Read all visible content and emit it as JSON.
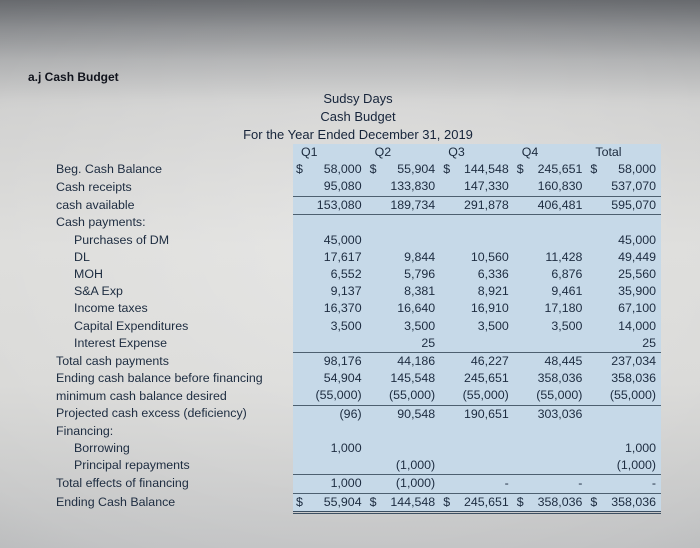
{
  "heading": "a.j Cash Budget",
  "title": {
    "company": "Sudsy Days",
    "report": "Cash Budget",
    "period": "For the Year Ended December 31, 2019"
  },
  "colors": {
    "table_background": "#c6d9e8",
    "rule_line": "#4d6070",
    "text": "#1d2c40"
  },
  "table": {
    "columns": [
      "Q1",
      "Q2",
      "Q3",
      "Q4",
      "Total"
    ],
    "rows": [
      {
        "label": "Beg. Cash Balance",
        "indent": 0,
        "dollar": true,
        "style": "",
        "values": [
          "58,000",
          "55,904",
          "144,548",
          "245,651",
          "58,000"
        ]
      },
      {
        "label": "Cash receipts",
        "indent": 0,
        "dollar": false,
        "style": "",
        "values": [
          "95,080",
          "133,830",
          "147,330",
          "160,830",
          "537,070"
        ]
      },
      {
        "label": "cash available",
        "indent": 0,
        "dollar": false,
        "style": "top bottom",
        "values": [
          "153,080",
          "189,734",
          "291,878",
          "406,481",
          "595,070"
        ]
      },
      {
        "label": "Cash payments:",
        "indent": 0,
        "dollar": false,
        "style": "",
        "values": [
          "",
          "",
          "",
          "",
          ""
        ]
      },
      {
        "label": "Purchases of DM",
        "indent": 1,
        "dollar": false,
        "style": "",
        "values": [
          "45,000",
          "",
          "",
          "",
          "45,000"
        ]
      },
      {
        "label": "DL",
        "indent": 1,
        "dollar": false,
        "style": "",
        "values": [
          "17,617",
          "9,844",
          "10,560",
          "11,428",
          "49,449"
        ]
      },
      {
        "label": "MOH",
        "indent": 1,
        "dollar": false,
        "style": "",
        "values": [
          "6,552",
          "5,796",
          "6,336",
          "6,876",
          "25,560"
        ]
      },
      {
        "label": "S&A Exp",
        "indent": 1,
        "dollar": false,
        "style": "",
        "values": [
          "9,137",
          "8,381",
          "8,921",
          "9,461",
          "35,900"
        ]
      },
      {
        "label": "Income taxes",
        "indent": 1,
        "dollar": false,
        "style": "",
        "values": [
          "16,370",
          "16,640",
          "16,910",
          "17,180",
          "67,100"
        ]
      },
      {
        "label": "Capital Expenditures",
        "indent": 1,
        "dollar": false,
        "style": "",
        "values": [
          "3,500",
          "3,500",
          "3,500",
          "3,500",
          "14,000"
        ]
      },
      {
        "label": "Interest Expense",
        "indent": 1,
        "dollar": false,
        "style": "",
        "values": [
          "",
          "25",
          "",
          "",
          "25"
        ]
      },
      {
        "label": "Total cash payments",
        "indent": 0,
        "dollar": false,
        "style": "top",
        "values": [
          "98,176",
          "44,186",
          "46,227",
          "48,445",
          "237,034"
        ]
      },
      {
        "label": "Ending cash balance before financing",
        "indent": 0,
        "dollar": false,
        "style": "",
        "values": [
          "54,904",
          "145,548",
          "245,651",
          "358,036",
          "358,036"
        ]
      },
      {
        "label": "minimum cash balance desired",
        "indent": 0,
        "dollar": false,
        "style": "bottom",
        "values": [
          "(55,000)",
          "(55,000)",
          "(55,000)",
          "(55,000)",
          "(55,000)"
        ]
      },
      {
        "label": "Projected cash excess (deficiency)",
        "indent": 0,
        "dollar": false,
        "style": "",
        "values": [
          "(96)",
          "90,548",
          "190,651",
          "303,036",
          ""
        ]
      },
      {
        "label": "Financing:",
        "indent": 0,
        "dollar": false,
        "style": "",
        "values": [
          "",
          "",
          "",
          "",
          ""
        ]
      },
      {
        "label": "Borrowing",
        "indent": 1,
        "dollar": false,
        "style": "",
        "values": [
          "1,000",
          "",
          "",
          "",
          "1,000"
        ]
      },
      {
        "label": "Principal repayments",
        "indent": 1,
        "dollar": false,
        "style": "bottom",
        "values": [
          "",
          "(1,000)",
          "",
          "",
          "(1,000)"
        ]
      },
      {
        "label": "Total effects of financing",
        "indent": 0,
        "dollar": false,
        "style": "bottom",
        "values": [
          "1,000",
          "(1,000)",
          "-",
          "-",
          "-"
        ]
      },
      {
        "label": "Ending Cash Balance",
        "indent": 0,
        "dollar": true,
        "style": "double",
        "values": [
          "55,904",
          "144,548",
          "245,651",
          "358,036",
          "358,036"
        ]
      }
    ]
  }
}
